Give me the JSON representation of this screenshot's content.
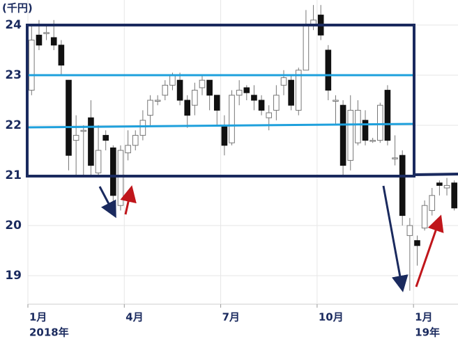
{
  "chart_data": {
    "type": "candlestick",
    "unit_label": "(千円)",
    "categories": [
      [
        "1月",
        "2018年"
      ],
      null,
      null,
      null,
      null,
      null,
      null,
      null,
      null,
      null,
      null,
      null,
      null,
      [
        "4月"
      ],
      null,
      null,
      null,
      null,
      null,
      null,
      null,
      null,
      null,
      null,
      null,
      null,
      [
        "7月"
      ],
      null,
      null,
      null,
      null,
      null,
      null,
      null,
      null,
      null,
      null,
      null,
      null,
      [
        "10月"
      ],
      null,
      null,
      null,
      null,
      null,
      null,
      null,
      null,
      null,
      null,
      null,
      null,
      [
        "1月",
        "19年"
      ],
      null,
      null,
      null,
      null,
      null
    ],
    "open": [
      22.7,
      23.8,
      23.85,
      23.75,
      23.6,
      22.9,
      21.7,
      21.9,
      22.15,
      21.05,
      21.8,
      21.55,
      20.4,
      21.45,
      21.6,
      21.8,
      22.2,
      22.5,
      22.6,
      22.8,
      22.9,
      22.5,
      22.4,
      22.75,
      22.9,
      22.6,
      22.0,
      21.65,
      22.6,
      22.75,
      22.6,
      22.5,
      22.15,
      22.3,
      22.8,
      22.9,
      22.3,
      23.1,
      24.0,
      24.2,
      23.5,
      22.5,
      22.4,
      21.3,
      21.65,
      22.1,
      21.7,
      21.7,
      22.7,
      21.35,
      21.4,
      19.8,
      19.7,
      19.95,
      20.3,
      20.85,
      20.75,
      20.85
    ],
    "close": [
      23.7,
      23.6,
      23.85,
      23.6,
      23.2,
      21.4,
      21.8,
      21.9,
      21.2,
      21.5,
      21.7,
      20.6,
      21.5,
      21.6,
      21.8,
      22.1,
      22.5,
      22.5,
      22.8,
      23.0,
      22.5,
      22.2,
      22.7,
      22.9,
      22.6,
      22.3,
      21.6,
      22.6,
      22.7,
      22.65,
      22.5,
      22.3,
      22.25,
      22.6,
      22.95,
      22.4,
      23.1,
      24.0,
      24.1,
      23.8,
      22.7,
      22.5,
      21.2,
      22.3,
      22.3,
      21.7,
      21.7,
      22.4,
      21.7,
      21.35,
      20.2,
      20.0,
      19.6,
      20.4,
      20.6,
      20.8,
      20.8,
      20.35
    ],
    "high": [
      24.0,
      24.1,
      24.0,
      24.1,
      23.7,
      22.9,
      22.2,
      22.0,
      22.5,
      22.0,
      21.9,
      21.6,
      21.6,
      21.9,
      21.9,
      22.3,
      22.6,
      22.6,
      22.9,
      23.05,
      23.05,
      22.6,
      22.85,
      23.0,
      22.9,
      22.6,
      22.2,
      22.7,
      22.9,
      22.8,
      22.8,
      22.6,
      22.4,
      22.8,
      23.1,
      23.0,
      23.15,
      24.3,
      24.4,
      24.4,
      23.6,
      22.6,
      22.5,
      22.6,
      22.5,
      22.3,
      21.75,
      22.45,
      22.8,
      21.8,
      21.5,
      20.15,
      19.8,
      20.5,
      20.75,
      20.9,
      20.95,
      20.9
    ],
    "low": [
      22.6,
      23.5,
      23.7,
      23.5,
      23.0,
      21.1,
      21.0,
      21.0,
      21.0,
      21.0,
      21.5,
      20.4,
      20.3,
      21.3,
      21.5,
      21.7,
      22.0,
      22.4,
      22.5,
      22.7,
      22.4,
      21.95,
      22.2,
      22.6,
      22.3,
      22.0,
      21.4,
      21.6,
      22.4,
      22.5,
      22.3,
      22.2,
      21.9,
      22.1,
      22.6,
      22.3,
      22.2,
      23.1,
      23.9,
      23.7,
      22.5,
      22.0,
      21.0,
      21.1,
      21.6,
      21.6,
      21.65,
      21.65,
      21.6,
      21.2,
      20.0,
      18.7,
      19.2,
      19.9,
      20.2,
      20.6,
      20.6,
      20.3
    ],
    "up_color": "#ffffff",
    "down_color": "#111111",
    "wick_color": "#777777",
    "ylim": [
      18.4,
      24.5
    ],
    "yticks": [
      19,
      20,
      21,
      22,
      23,
      24
    ],
    "ytick_colors": [
      "#1a2a5e",
      "#1a2a5e",
      "#1a2a5e",
      "#1ea0dc",
      "#1ea0dc",
      "#1a2a5e"
    ],
    "grid": true
  }
}
